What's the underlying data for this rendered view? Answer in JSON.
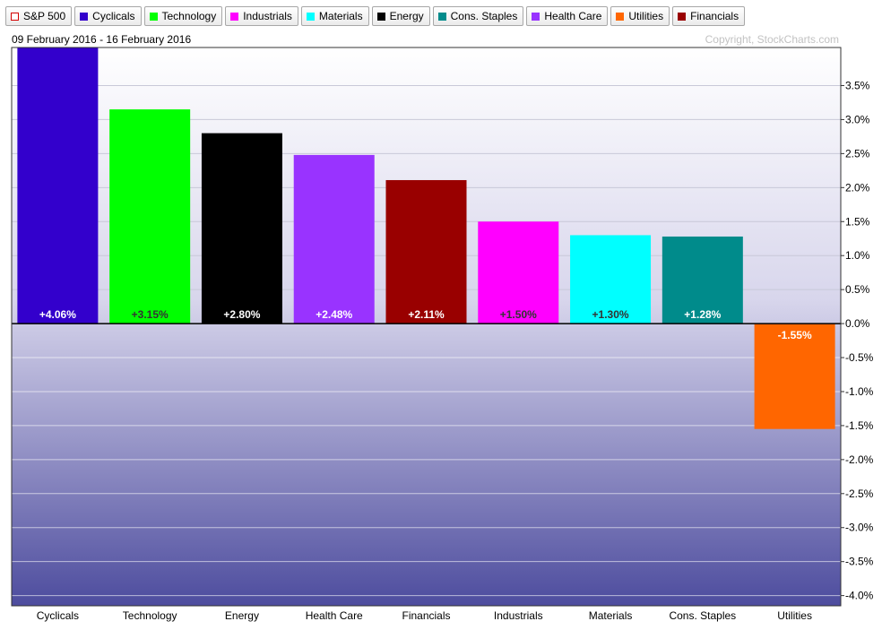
{
  "legend": [
    {
      "label": "S&P 500",
      "color": "#ffffff",
      "border": "#d40000"
    },
    {
      "label": "Cyclicals",
      "color": "#3300cc"
    },
    {
      "label": "Technology",
      "color": "#00ff00"
    },
    {
      "label": "Industrials",
      "color": "#ff00ff"
    },
    {
      "label": "Materials",
      "color": "#00ffff"
    },
    {
      "label": "Energy",
      "color": "#000000"
    },
    {
      "label": "Cons. Staples",
      "color": "#008b8b"
    },
    {
      "label": "Health Care",
      "color": "#9933ff"
    },
    {
      "label": "Utilities",
      "color": "#ff6600"
    },
    {
      "label": "Financials",
      "color": "#990000"
    }
  ],
  "header": {
    "date_range": "09 February 2016 - 16 February 2016",
    "copyright": "Copyright, StockCharts.com"
  },
  "chart_data": {
    "type": "bar",
    "categories": [
      "Cyclicals",
      "Technology",
      "Energy",
      "Health Care",
      "Financials",
      "Industrials",
      "Materials",
      "Cons. Staples",
      "Utilities"
    ],
    "values": [
      4.06,
      3.15,
      2.8,
      2.48,
      2.11,
      1.5,
      1.3,
      1.28,
      -1.55
    ],
    "data_labels": [
      "+4.06%",
      "+3.15%",
      "+2.80%",
      "+2.48%",
      "+2.11%",
      "+1.50%",
      "+1.30%",
      "+1.28%",
      "-1.55%"
    ],
    "colors": [
      "#3300cc",
      "#00ff00",
      "#000000",
      "#9933ff",
      "#990000",
      "#ff00ff",
      "#00ffff",
      "#008b8b",
      "#ff6600"
    ],
    "label_colors": [
      "#ffffff",
      "#333333",
      "#ffffff",
      "#ffffff",
      "#ffffff",
      "#333333",
      "#333333",
      "#ffffff",
      "#ffffff"
    ],
    "ylim": [
      -4.15,
      4.06
    ],
    "yticks": [
      3.5,
      3.0,
      2.5,
      2.0,
      1.5,
      1.0,
      0.5,
      0.0,
      -0.5,
      -1.0,
      -1.5,
      -2.0,
      -2.5,
      -3.0,
      -3.5,
      -4.0
    ],
    "ytick_labels": [
      "3.5%",
      "3.0%",
      "2.5%",
      "2.0%",
      "1.5%",
      "1.0%",
      "0.5%",
      "0.0%",
      "-0.5%",
      "-1.0%",
      "-1.5%",
      "-2.0%",
      "-2.5%",
      "-3.0%",
      "-3.5%",
      "-4.0%"
    ],
    "grid": true,
    "legend_position": "top"
  }
}
